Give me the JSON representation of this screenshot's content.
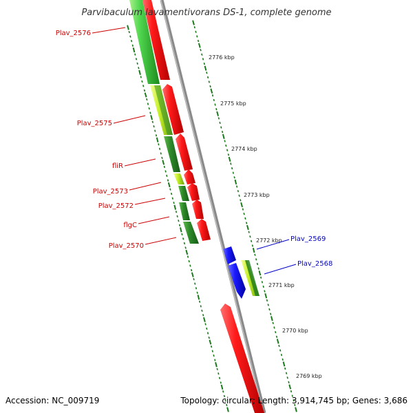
{
  "title": "Parvibaculum lavamentivorans DS-1, complete genome",
  "accession": "Accession: NC_009719",
  "summary": "Topology: circular; Length: 3,914,745 bp; Genes: 3,686",
  "colors": {
    "forward_label": "#cc0000",
    "reverse_label": "#0000cc",
    "tick": "#1a7a1a",
    "backbone": "#888888"
  },
  "kbp_ticks": [
    "2776 kbp",
    "2775 kbp",
    "2774 kbp",
    "2773 kbp",
    "2772 kbp",
    "2771 kbp",
    "2770 kbp",
    "2769 kbp"
  ],
  "genes": {
    "left": [
      "Plav_2576",
      "Plav_2575",
      "fliR",
      "Plav_2573",
      "Plav_2572",
      "flgC",
      "Plav_2570"
    ],
    "right": [
      "Plav_2569",
      "Plav_2568"
    ]
  }
}
